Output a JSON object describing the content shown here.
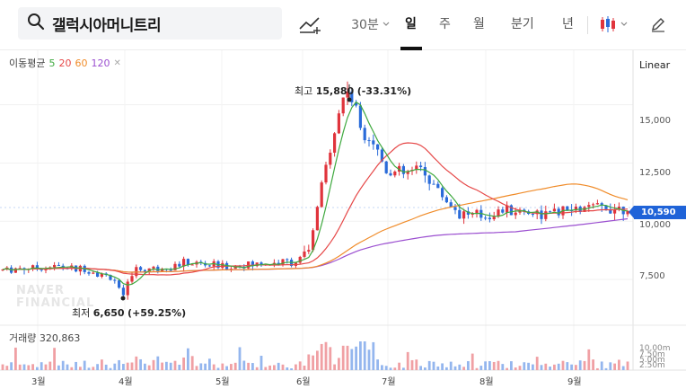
{
  "search": {
    "value": "갤럭시아머니트리"
  },
  "toolbar": {
    "period_select": "30분",
    "tabs": [
      "일",
      "주",
      "월",
      "분기",
      "년"
    ],
    "active_tab": "일"
  },
  "legend": {
    "ma_title": "이동평균",
    "ma_periods": [
      "5",
      "20",
      "60",
      "120"
    ],
    "volume_title": "거래량",
    "volume_value": "320,863"
  },
  "scale": "Linear",
  "y_axis_ticks": [
    "15,000",
    "12,500",
    "10,000",
    "7,500"
  ],
  "volume_axis_ticks": [
    "10.00m",
    "7.50m",
    "5.00m",
    "2.50m"
  ],
  "x_axis_months": [
    "3월",
    "4월",
    "5월",
    "6월",
    "7월",
    "8월",
    "9월"
  ],
  "current_price": "10,590",
  "annotations": {
    "high_label": "최고",
    "high_value": "15,880",
    "high_change": "(-33.31%)",
    "low_label": "최저",
    "low_value": "6,650",
    "low_change": "(+59.25%)"
  },
  "watermark": [
    "NAVER",
    "FINANCIAL"
  ],
  "colors": {
    "up": "#e0343c",
    "down": "#2a6bd9",
    "ma5": "#3fa93f",
    "ma20": "#e64848",
    "ma60": "#f08c2a",
    "ma120": "#9b4fd0",
    "accent": "#1f63d8"
  },
  "chart_data": {
    "type": "candlestick",
    "x_unit": "month",
    "y_unit": "KRW",
    "ylim": [
      6000,
      16800
    ],
    "key_points": [
      {
        "x": "3월 초",
        "y": 8000
      },
      {
        "x": "4월 초",
        "y": 6650
      },
      {
        "x": "5월",
        "y": 8100
      },
      {
        "x": "6월 초",
        "y": 8300
      },
      {
        "x": "6월 말",
        "y": 15880
      },
      {
        "x": "7월",
        "y": 12000
      },
      {
        "x": "8월",
        "y": 10100
      },
      {
        "x": "9월",
        "y": 10590
      }
    ],
    "series": [
      {
        "name": "5",
        "type": "line"
      },
      {
        "name": "20",
        "type": "line"
      },
      {
        "name": "60",
        "type": "line"
      },
      {
        "name": "120",
        "type": "line"
      }
    ]
  }
}
